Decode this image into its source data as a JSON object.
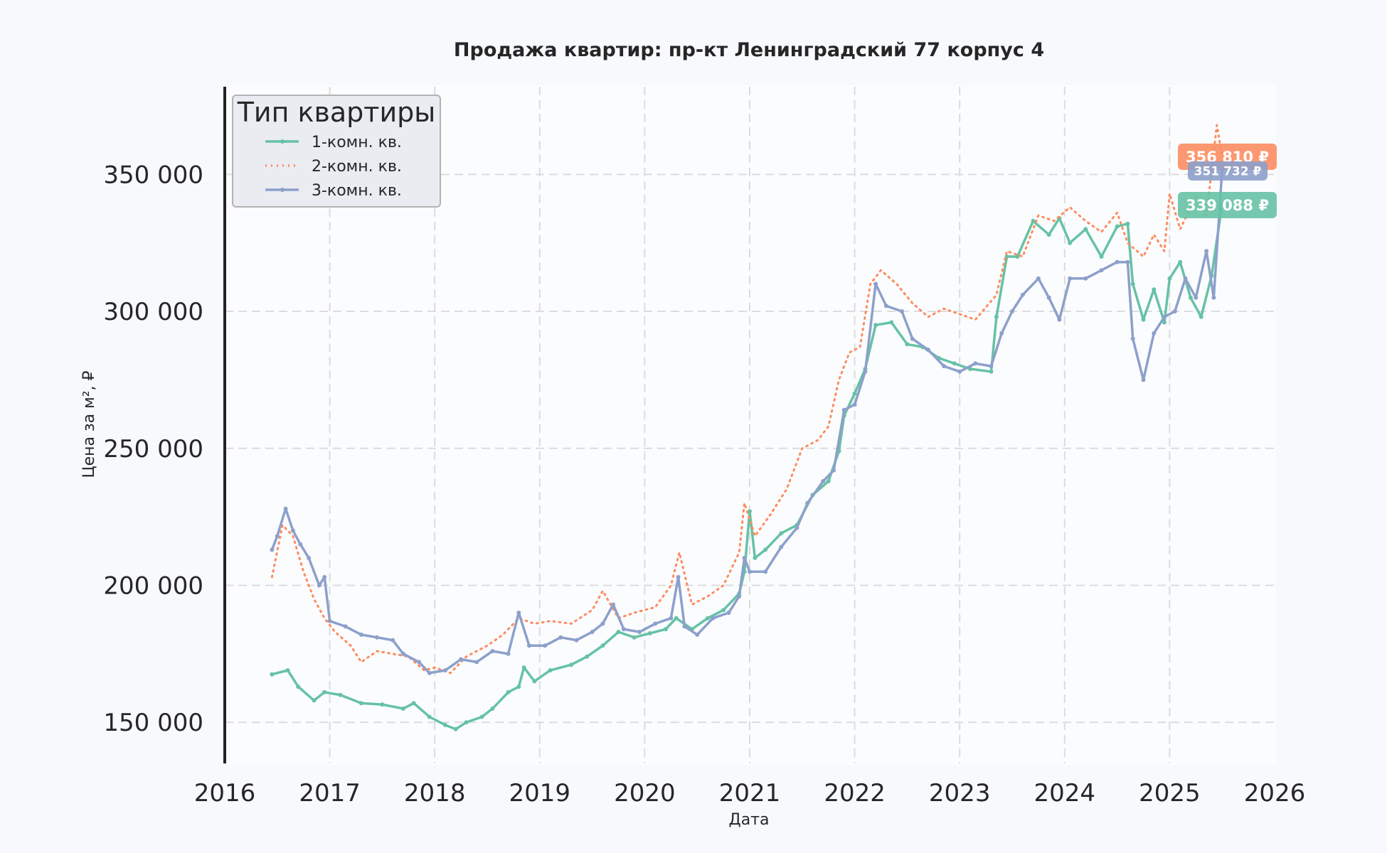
{
  "chart_data": {
    "type": "line",
    "title": "Продажа квартир: пр-кт Ленинградский 77 корпус 4",
    "xlabel": "Дата",
    "ylabel": "Цена за м², ₽",
    "xlim": [
      2016,
      2026
    ],
    "ylim": [
      135000,
      382000
    ],
    "x_ticks": [
      "2016",
      "2017",
      "2018",
      "2019",
      "2020",
      "2021",
      "2022",
      "2023",
      "2024",
      "2025",
      "2026"
    ],
    "y_ticks": [
      {
        "value": 150000,
        "label": "150 000"
      },
      {
        "value": 200000,
        "label": "200 000"
      },
      {
        "value": 250000,
        "label": "250 000"
      },
      {
        "value": 300000,
        "label": "300 000"
      },
      {
        "value": 350000,
        "label": "350 000"
      }
    ],
    "grid": true,
    "legend": {
      "title": "Тип квартиры",
      "position": "top-left"
    },
    "series": [
      {
        "name": "1-комн. кв.",
        "color": "#66c2a5",
        "style": "solid-markers",
        "end_label": "339 088 ₽",
        "points": [
          [
            2016.45,
            167500
          ],
          [
            2016.6,
            169000
          ],
          [
            2016.7,
            163000
          ],
          [
            2016.85,
            158000
          ],
          [
            2016.95,
            161000
          ],
          [
            2017.1,
            160000
          ],
          [
            2017.3,
            157000
          ],
          [
            2017.5,
            156500
          ],
          [
            2017.7,
            155000
          ],
          [
            2017.8,
            157000
          ],
          [
            2017.95,
            152000
          ],
          [
            2018.1,
            149000
          ],
          [
            2018.2,
            147500
          ],
          [
            2018.3,
            150000
          ],
          [
            2018.45,
            152000
          ],
          [
            2018.55,
            155000
          ],
          [
            2018.7,
            161000
          ],
          [
            2018.8,
            163000
          ],
          [
            2018.85,
            170000
          ],
          [
            2018.95,
            165000
          ],
          [
            2019.1,
            169000
          ],
          [
            2019.3,
            171000
          ],
          [
            2019.45,
            174000
          ],
          [
            2019.6,
            178000
          ],
          [
            2019.75,
            183000
          ],
          [
            2019.9,
            181000
          ],
          [
            2020.05,
            182500
          ],
          [
            2020.2,
            184000
          ],
          [
            2020.3,
            188000
          ],
          [
            2020.45,
            184000
          ],
          [
            2020.6,
            188000
          ],
          [
            2020.75,
            191000
          ],
          [
            2020.9,
            197000
          ],
          [
            2020.95,
            205000
          ],
          [
            2021.0,
            227000
          ],
          [
            2021.05,
            210000
          ],
          [
            2021.15,
            213000
          ],
          [
            2021.3,
            219000
          ],
          [
            2021.45,
            222000
          ],
          [
            2021.6,
            233000
          ],
          [
            2021.75,
            238000
          ],
          [
            2021.85,
            249000
          ],
          [
            2021.9,
            262000
          ],
          [
            2022.0,
            270000
          ],
          [
            2022.1,
            279000
          ],
          [
            2022.2,
            295000
          ],
          [
            2022.35,
            296000
          ],
          [
            2022.5,
            288000
          ],
          [
            2022.65,
            287000
          ],
          [
            2022.8,
            283000
          ],
          [
            2022.95,
            281000
          ],
          [
            2023.1,
            279000
          ],
          [
            2023.3,
            278000
          ],
          [
            2023.35,
            298000
          ],
          [
            2023.45,
            320000
          ],
          [
            2023.55,
            320000
          ],
          [
            2023.7,
            333000
          ],
          [
            2023.85,
            328000
          ],
          [
            2023.95,
            334000
          ],
          [
            2024.05,
            325000
          ],
          [
            2024.2,
            330000
          ],
          [
            2024.35,
            320000
          ],
          [
            2024.5,
            331000
          ],
          [
            2024.6,
            332000
          ],
          [
            2024.65,
            310000
          ],
          [
            2024.75,
            297000
          ],
          [
            2024.85,
            308000
          ],
          [
            2024.95,
            296000
          ],
          [
            2025.0,
            312000
          ],
          [
            2025.1,
            318000
          ],
          [
            2025.2,
            305000
          ],
          [
            2025.3,
            298000
          ],
          [
            2025.4,
            313000
          ],
          [
            2025.5,
            339088
          ]
        ]
      },
      {
        "name": "2-комн. кв.",
        "color": "#fc8d62",
        "style": "dotted",
        "end_label": "356 810 ₽",
        "points": [
          [
            2016.45,
            203000
          ],
          [
            2016.55,
            222000
          ],
          [
            2016.65,
            218000
          ],
          [
            2016.75,
            205000
          ],
          [
            2016.85,
            195000
          ],
          [
            2016.95,
            188000
          ],
          [
            2017.05,
            183000
          ],
          [
            2017.2,
            178000
          ],
          [
            2017.3,
            172000
          ],
          [
            2017.45,
            176000
          ],
          [
            2017.6,
            175000
          ],
          [
            2017.75,
            174000
          ],
          [
            2017.9,
            169000
          ],
          [
            2018.0,
            170000
          ],
          [
            2018.15,
            168000
          ],
          [
            2018.3,
            174000
          ],
          [
            2018.5,
            178000
          ],
          [
            2018.65,
            182000
          ],
          [
            2018.8,
            188000
          ],
          [
            2018.95,
            186000
          ],
          [
            2019.1,
            187000
          ],
          [
            2019.3,
            186000
          ],
          [
            2019.5,
            191000
          ],
          [
            2019.6,
            198000
          ],
          [
            2019.75,
            188000
          ],
          [
            2019.9,
            190000
          ],
          [
            2020.1,
            192000
          ],
          [
            2020.25,
            200000
          ],
          [
            2020.33,
            212000
          ],
          [
            2020.45,
            193000
          ],
          [
            2020.6,
            196000
          ],
          [
            2020.75,
            200000
          ],
          [
            2020.9,
            212000
          ],
          [
            2020.95,
            230000
          ],
          [
            2021.05,
            218000
          ],
          [
            2021.2,
            226000
          ],
          [
            2021.35,
            235000
          ],
          [
            2021.5,
            250000
          ],
          [
            2021.65,
            253000
          ],
          [
            2021.75,
            258000
          ],
          [
            2021.85,
            275000
          ],
          [
            2021.95,
            285000
          ],
          [
            2022.05,
            287000
          ],
          [
            2022.15,
            310000
          ],
          [
            2022.25,
            315000
          ],
          [
            2022.4,
            310000
          ],
          [
            2022.55,
            303000
          ],
          [
            2022.7,
            298000
          ],
          [
            2022.85,
            301000
          ],
          [
            2023.0,
            299000
          ],
          [
            2023.15,
            297000
          ],
          [
            2023.35,
            306000
          ],
          [
            2023.45,
            322000
          ],
          [
            2023.6,
            320000
          ],
          [
            2023.75,
            335000
          ],
          [
            2023.9,
            333000
          ],
          [
            2024.05,
            338000
          ],
          [
            2024.2,
            333000
          ],
          [
            2024.35,
            329000
          ],
          [
            2024.5,
            336000
          ],
          [
            2024.6,
            325000
          ],
          [
            2024.75,
            320000
          ],
          [
            2024.85,
            328000
          ],
          [
            2024.95,
            322000
          ],
          [
            2025.0,
            343000
          ],
          [
            2025.1,
            330000
          ],
          [
            2025.25,
            342000
          ],
          [
            2025.35,
            335000
          ],
          [
            2025.45,
            368000
          ],
          [
            2025.5,
            356810
          ]
        ]
      },
      {
        "name": "3-комн. кв.",
        "color": "#8da0cb",
        "style": "solid-markers",
        "end_label": "351 732 ₽",
        "points": [
          [
            2016.45,
            213000
          ],
          [
            2016.5,
            218000
          ],
          [
            2016.58,
            228000
          ],
          [
            2016.65,
            220000
          ],
          [
            2016.72,
            215000
          ],
          [
            2016.8,
            210000
          ],
          [
            2016.9,
            200000
          ],
          [
            2016.95,
            203000
          ],
          [
            2017.0,
            187000
          ],
          [
            2017.15,
            185000
          ],
          [
            2017.3,
            182000
          ],
          [
            2017.45,
            181000
          ],
          [
            2017.6,
            180000
          ],
          [
            2017.7,
            175000
          ],
          [
            2017.85,
            172000
          ],
          [
            2017.95,
            168000
          ],
          [
            2018.1,
            169000
          ],
          [
            2018.25,
            173000
          ],
          [
            2018.4,
            172000
          ],
          [
            2018.55,
            176000
          ],
          [
            2018.7,
            175000
          ],
          [
            2018.8,
            190000
          ],
          [
            2018.9,
            178000
          ],
          [
            2019.05,
            178000
          ],
          [
            2019.2,
            181000
          ],
          [
            2019.35,
            180000
          ],
          [
            2019.5,
            183000
          ],
          [
            2019.6,
            186000
          ],
          [
            2019.7,
            193000
          ],
          [
            2019.8,
            184000
          ],
          [
            2019.95,
            183000
          ],
          [
            2020.1,
            186000
          ],
          [
            2020.25,
            188000
          ],
          [
            2020.32,
            203000
          ],
          [
            2020.38,
            185000
          ],
          [
            2020.5,
            182000
          ],
          [
            2020.65,
            188000
          ],
          [
            2020.8,
            190000
          ],
          [
            2020.9,
            196000
          ],
          [
            2020.95,
            210000
          ],
          [
            2021.0,
            205000
          ],
          [
            2021.15,
            205000
          ],
          [
            2021.3,
            214000
          ],
          [
            2021.45,
            221000
          ],
          [
            2021.55,
            230000
          ],
          [
            2021.7,
            238000
          ],
          [
            2021.8,
            242000
          ],
          [
            2021.9,
            264000
          ],
          [
            2022.0,
            266000
          ],
          [
            2022.1,
            278000
          ],
          [
            2022.2,
            310000
          ],
          [
            2022.3,
            302000
          ],
          [
            2022.45,
            300000
          ],
          [
            2022.55,
            290000
          ],
          [
            2022.7,
            286000
          ],
          [
            2022.85,
            280000
          ],
          [
            2023.0,
            278000
          ],
          [
            2023.15,
            281000
          ],
          [
            2023.3,
            280000
          ],
          [
            2023.4,
            292000
          ],
          [
            2023.5,
            300000
          ],
          [
            2023.6,
            306000
          ],
          [
            2023.75,
            312000
          ],
          [
            2023.85,
            305000
          ],
          [
            2023.95,
            297000
          ],
          [
            2024.05,
            312000
          ],
          [
            2024.2,
            312000
          ],
          [
            2024.35,
            315000
          ],
          [
            2024.5,
            318000
          ],
          [
            2024.6,
            318000
          ],
          [
            2024.65,
            290000
          ],
          [
            2024.75,
            275000
          ],
          [
            2024.85,
            292000
          ],
          [
            2024.95,
            298000
          ],
          [
            2025.05,
            300000
          ],
          [
            2025.15,
            312000
          ],
          [
            2025.25,
            305000
          ],
          [
            2025.35,
            322000
          ],
          [
            2025.42,
            305000
          ],
          [
            2025.5,
            351732
          ]
        ]
      }
    ]
  }
}
